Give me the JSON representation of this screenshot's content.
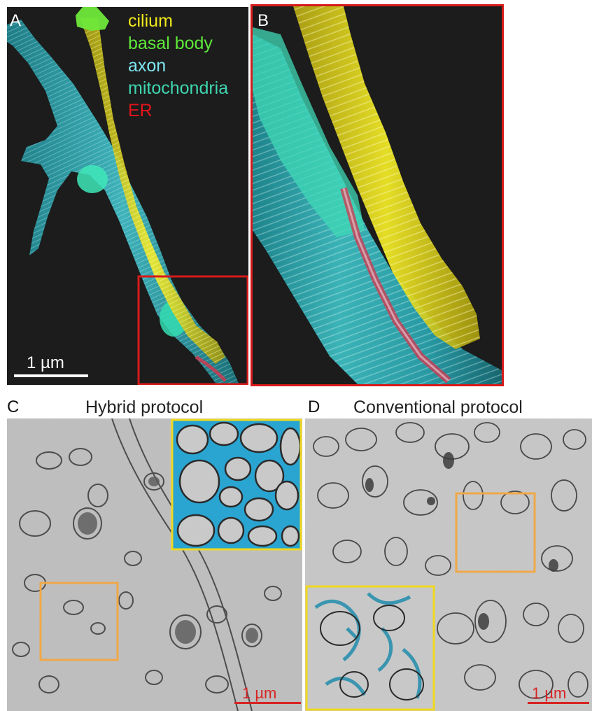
{
  "panels": {
    "a": {
      "letter": "A"
    },
    "b": {
      "letter": "B"
    },
    "c": {
      "letter": "C",
      "title": "Hybrid protocol",
      "scale_label": "1 µm"
    },
    "d": {
      "letter": "D",
      "title": "Conventional protocol",
      "scale_label": "1 µm"
    }
  },
  "legend": [
    {
      "label": "cilium",
      "color": "#f2ea1c"
    },
    {
      "label": "basal body",
      "color": "#5fe83a"
    },
    {
      "label": "axon",
      "color": "#7fe6f0"
    },
    {
      "label": "mitochondria",
      "color": "#3fd6b0"
    },
    {
      "label": "ER",
      "color": "#e2141c"
    }
  ],
  "scale_bar_a": {
    "label": "1 µm"
  },
  "colors": {
    "background_3d": "#1c1c1c",
    "cilium": "#e9e216",
    "axon": "#2fb8c4",
    "mitochondria": "#2ee0b4",
    "er": "#d8344c",
    "zoom_box_red": "#d61a1a",
    "zoom_box_orange": "#f0a848",
    "inset_yellow": "#f0d820",
    "extracellular_blue": "#2aa4d0",
    "em_background": "#bdbdbd"
  }
}
